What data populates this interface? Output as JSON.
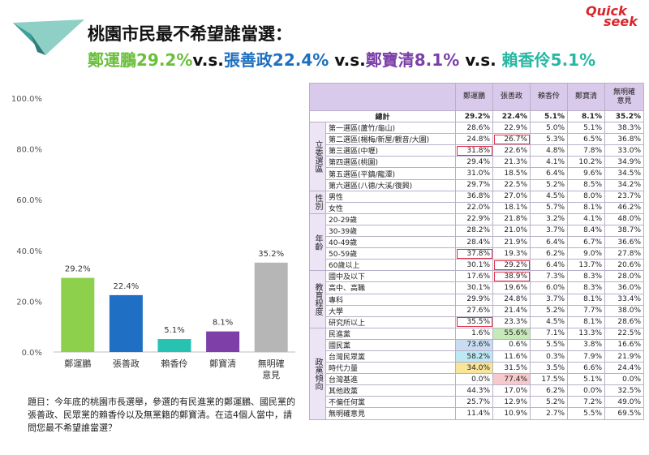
{
  "header": {
    "title_line1": "桃園市民最不希望誰當選：",
    "title_line2_parts": [
      {
        "text": "鄭運鵬29.2%",
        "color": "#6abf3b"
      },
      {
        "text": "v.s.",
        "color": "#111111"
      },
      {
        "text": "張善政22.4%",
        "color": "#1e6fc0"
      },
      {
        "text": " v.s.",
        "color": "#111111"
      },
      {
        "text": "鄭寶清8.1%",
        "color": "#7b3fa8"
      },
      {
        "text": " v.s. ",
        "color": "#111111"
      },
      {
        "text": "賴香伶5.1%",
        "color": "#27b7a3"
      }
    ],
    "brand_line1": "Quick",
    "brand_line2": "seek"
  },
  "chart_data": {
    "type": "bar",
    "categories": [
      "鄭運鵬",
      "張善政",
      "賴香伶",
      "鄭寶清",
      "無明確\n意見"
    ],
    "values": [
      29.2,
      22.4,
      5.1,
      8.1,
      35.2
    ],
    "value_labels": [
      "29.2%",
      "22.4%",
      "5.1%",
      "8.1%",
      "35.2%"
    ],
    "colors": [
      "#8dd04c",
      "#1f6fc5",
      "#27c2b2",
      "#7e3fa8",
      "#b6b6b6"
    ],
    "ylim": [
      0,
      100
    ],
    "yticks": [
      "0.0%",
      "20.0%",
      "40.0%",
      "60.0%",
      "80.0%",
      "100.0%"
    ],
    "ytick_values": [
      0,
      20,
      40,
      60,
      80,
      100
    ],
    "grid": false,
    "title": "",
    "xlabel": "",
    "ylabel": ""
  },
  "question": "題目：今年底的桃園市長選舉，參選的有民進黨的鄭運鵬、國民黨的張善政、民眾黨的賴香伶以及無黨籍的鄭寶清。在這4個人當中，請問您最不希望誰當選？",
  "table": {
    "columns": [
      "鄭運鵬",
      "張善政",
      "賴香伶",
      "鄭寶清",
      "無明確意見"
    ],
    "total": {
      "label": "總計",
      "values": [
        "29.2%",
        "22.4%",
        "5.1%",
        "8.1%",
        "35.2%"
      ]
    },
    "groups": [
      {
        "name": "立委選區",
        "rows": [
          {
            "label": "第一選區(蘆竹/龜山)",
            "values": [
              "28.6%",
              "22.9%",
              "5.0%",
              "5.1%",
              "38.3%"
            ]
          },
          {
            "label": "第二選區(楊梅/新屋/觀音/大園)",
            "values": [
              "24.8%",
              "26.7%",
              "5.3%",
              "6.5%",
              "36.8%"
            ]
          },
          {
            "label": "第三選區(中壢)",
            "values": [
              "31.8%",
              "22.6%",
              "4.8%",
              "7.8%",
              "33.0%"
            ]
          },
          {
            "label": "第四選區(桃園)",
            "values": [
              "29.4%",
              "21.3%",
              "4.1%",
              "10.2%",
              "34.9%"
            ]
          },
          {
            "label": "第五選區(平鎮/龍潭)",
            "values": [
              "31.0%",
              "18.5%",
              "6.4%",
              "9.6%",
              "34.5%"
            ]
          },
          {
            "label": "第六選區(八德/大溪/復興)",
            "values": [
              "29.7%",
              "22.5%",
              "5.2%",
              "8.5%",
              "34.2%"
            ]
          }
        ]
      },
      {
        "name": "性別",
        "rows": [
          {
            "label": "男性",
            "values": [
              "36.8%",
              "27.0%",
              "4.5%",
              "8.0%",
              "23.7%"
            ]
          },
          {
            "label": "女性",
            "values": [
              "22.0%",
              "18.1%",
              "5.7%",
              "8.1%",
              "46.2%"
            ]
          }
        ]
      },
      {
        "name": "年齡",
        "rows": [
          {
            "label": "20-29歲",
            "values": [
              "22.9%",
              "21.8%",
              "3.2%",
              "4.1%",
              "48.0%"
            ]
          },
          {
            "label": "30-39歲",
            "values": [
              "28.2%",
              "21.0%",
              "3.7%",
              "8.4%",
              "38.7%"
            ]
          },
          {
            "label": "40-49歲",
            "values": [
              "28.4%",
              "21.9%",
              "6.4%",
              "6.7%",
              "36.6%"
            ]
          },
          {
            "label": "50-59歲",
            "values": [
              "37.8%",
              "19.3%",
              "6.2%",
              "9.0%",
              "27.8%"
            ]
          },
          {
            "label": "60歲以上",
            "values": [
              "30.1%",
              "29.2%",
              "6.4%",
              "13.7%",
              "20.6%"
            ]
          }
        ]
      },
      {
        "name": "教育程度",
        "rows": [
          {
            "label": "國中及以下",
            "values": [
              "17.6%",
              "38.9%",
              "7.3%",
              "8.3%",
              "28.0%"
            ]
          },
          {
            "label": "高中、高職",
            "values": [
              "30.1%",
              "19.6%",
              "6.0%",
              "8.3%",
              "36.0%"
            ]
          },
          {
            "label": "專科",
            "values": [
              "29.9%",
              "24.8%",
              "3.7%",
              "8.1%",
              "33.4%"
            ]
          },
          {
            "label": "大學",
            "values": [
              "27.6%",
              "21.4%",
              "5.2%",
              "7.7%",
              "38.0%"
            ]
          },
          {
            "label": "研究所以上",
            "values": [
              "35.5%",
              "23.3%",
              "4.5%",
              "8.1%",
              "28.6%"
            ]
          }
        ]
      },
      {
        "name": "政黨傾向",
        "rows": [
          {
            "label": "民進黨",
            "values": [
              "1.6%",
              "55.6%",
              "7.1%",
              "13.3%",
              "22.5%"
            ]
          },
          {
            "label": "國民黨",
            "values": [
              "73.6%",
              "0.6%",
              "5.5%",
              "3.8%",
              "16.6%"
            ]
          },
          {
            "label": "台灣民眾黨",
            "values": [
              "58.2%",
              "11.6%",
              "0.3%",
              "7.9%",
              "21.9%"
            ]
          },
          {
            "label": "時代力量",
            "values": [
              "34.0%",
              "31.5%",
              "3.5%",
              "6.6%",
              "24.4%"
            ]
          },
          {
            "label": "台灣基進",
            "values": [
              "0.0%",
              "77.4%",
              "17.5%",
              "5.1%",
              "0.0%"
            ]
          },
          {
            "label": "其他政黨",
            "values": [
              "44.3%",
              "17.0%",
              "6.2%",
              "0.0%",
              "32.5%"
            ]
          },
          {
            "label": "不偏任何黨",
            "values": [
              "25.7%",
              "12.9%",
              "5.2%",
              "7.2%",
              "49.0%"
            ]
          },
          {
            "label": "無明確意見",
            "values": [
              "11.4%",
              "10.9%",
              "2.7%",
              "5.5%",
              "69.5%"
            ]
          }
        ]
      }
    ]
  }
}
